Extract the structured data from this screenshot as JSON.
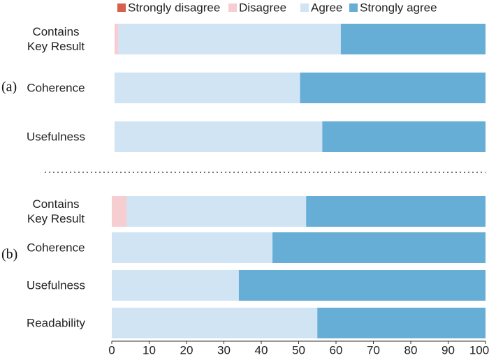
{
  "chart_data": [
    {
      "type": "stacked-barh",
      "panel_label": "(a)",
      "categories": [
        "Contains\nKey Result",
        "Coherence",
        "Usefulness"
      ],
      "series": [
        {
          "name": "Strongly disagree",
          "color": "#d6604d",
          "values": [
            0,
            0,
            0
          ]
        },
        {
          "name": "Disagree",
          "color": "#f6cdd0",
          "values": [
            1,
            0,
            0
          ]
        },
        {
          "name": "Agree",
          "color": "#d1e4f4",
          "values": [
            60,
            50,
            56
          ]
        },
        {
          "name": "Strongly agree",
          "color": "#66aed6",
          "values": [
            39,
            50,
            44
          ]
        }
      ],
      "xlim": [
        0,
        100
      ]
    },
    {
      "type": "stacked-barh",
      "panel_label": "(b)",
      "categories": [
        "Contains\nKey Result",
        "Coherence",
        "Usefulness",
        "Readability"
      ],
      "series": [
        {
          "color": "#d6604d",
          "values": [
            0,
            0,
            0,
            0
          ]
        },
        {
          "color": "#f6cdd0",
          "values": [
            4,
            0,
            0,
            0
          ]
        },
        {
          "color": "#d1e4f4",
          "values": [
            48,
            43,
            34,
            55
          ]
        },
        {
          "color": "#66aed6",
          "values": [
            48,
            57,
            66,
            45
          ]
        }
      ],
      "xlim": [
        0,
        100
      ],
      "xticks": [
        0,
        10,
        20,
        30,
        40,
        50,
        60,
        70,
        80,
        90,
        100
      ]
    }
  ]
}
